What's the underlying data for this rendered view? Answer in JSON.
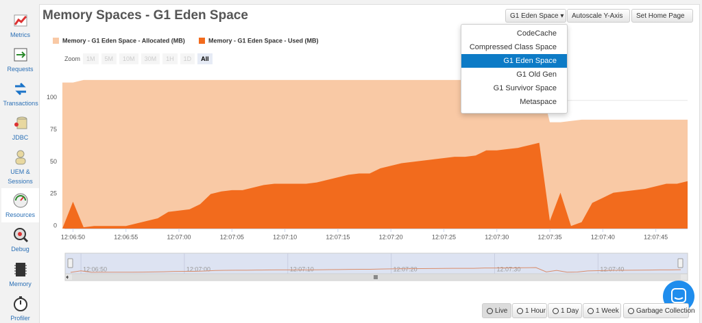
{
  "sidebar": [
    "Metrics",
    "Requests",
    "Transactions",
    "JDBC",
    "UEM & Sessions",
    "Resources",
    "Debug",
    "Memory",
    "Profiler"
  ],
  "sidebar_selected": 5,
  "header": {
    "title": "Memory Spaces - G1 Eden Space",
    "buttons": [
      "G1 Eden Space",
      "Autoscale Y-Axis",
      "Set Home Page"
    ]
  },
  "dropdown": {
    "items": [
      "CodeCache",
      "Compressed Class Space",
      "G1 Eden Space",
      "G1 Old Gen",
      "G1 Survivor Space",
      "Metaspace"
    ],
    "selected": 2
  },
  "zoom": {
    "label": "Zoom",
    "buttons": [
      "1M",
      "5M",
      "10M",
      "30M",
      "1H",
      "1D",
      "All"
    ],
    "active": 6
  },
  "footer_buttons": [
    "Live",
    "1 Hour",
    "1 Day",
    "1 Week",
    "Garbage Collection"
  ],
  "footer_active": 0,
  "chart_data": {
    "type": "area",
    "x": [
      "12:06:49",
      "12:06:50",
      "12:06:51",
      "12:06:52",
      "12:06:53",
      "12:06:54",
      "12:06:55",
      "12:06:56",
      "12:06:57",
      "12:06:58",
      "12:06:59",
      "12:07:00",
      "12:07:01",
      "12:07:02",
      "12:07:03",
      "12:07:04",
      "12:07:05",
      "12:07:06",
      "12:07:07",
      "12:07:08",
      "12:07:09",
      "12:07:10",
      "12:07:11",
      "12:07:12",
      "12:07:13",
      "12:07:14",
      "12:07:15",
      "12:07:16",
      "12:07:17",
      "12:07:18",
      "12:07:19",
      "12:07:20",
      "12:07:21",
      "12:07:22",
      "12:07:23",
      "12:07:24",
      "12:07:25",
      "12:07:26",
      "12:07:27",
      "12:07:28",
      "12:07:29",
      "12:07:30",
      "12:07:31",
      "12:07:32",
      "12:07:33",
      "12:07:34",
      "12:07:35",
      "12:07:36",
      "12:07:37",
      "12:07:38",
      "12:07:39",
      "12:07:40",
      "12:07:41",
      "12:07:42",
      "12:07:43",
      "12:07:44",
      "12:07:45",
      "12:07:46",
      "12:07:47",
      "12:07:48"
    ],
    "series": [
      {
        "name": "Memory - G1 Eden Space - Allocated (MB)",
        "color": "#f9c9a5",
        "values": [
          114,
          114,
          116,
          116,
          116,
          116,
          116,
          116,
          116,
          116,
          116,
          116,
          116,
          116,
          116,
          116,
          116,
          116,
          116,
          116,
          116,
          116,
          116,
          116,
          116,
          116,
          116,
          116,
          116,
          116,
          116,
          116,
          116,
          116,
          116,
          116,
          116,
          116,
          116,
          116,
          116,
          116,
          116,
          116,
          116,
          116,
          83,
          83,
          84,
          85,
          85,
          85,
          85,
          85,
          85,
          85,
          85,
          85,
          85,
          85
        ]
      },
      {
        "name": "Memory - G1 Eden Space - Used (MB)",
        "color": "#f26b1d",
        "values": [
          0,
          21,
          1,
          2,
          2,
          2,
          2,
          4,
          6,
          8,
          13,
          14,
          15,
          19,
          27,
          29,
          30,
          30,
          32,
          34,
          35,
          35,
          35,
          35,
          36,
          38,
          40,
          42,
          43,
          43,
          47,
          49,
          51,
          52,
          53,
          54,
          55,
          56,
          56,
          57,
          61,
          61,
          62,
          63,
          65,
          67,
          6,
          28,
          2,
          5,
          20,
          24,
          28,
          29,
          30,
          31,
          33,
          35,
          35,
          37
        ]
      }
    ],
    "xlim": [
      "12:06:49",
      "12:07:48"
    ],
    "xticks": [
      "12:06:50",
      "12:06:55",
      "12:07:00",
      "12:07:05",
      "12:07:10",
      "12:07:15",
      "12:07:20",
      "12:07:25",
      "12:07:30",
      "12:07:35",
      "12:07:40",
      "12:07:45"
    ],
    "ylim": [
      0,
      125
    ],
    "yticks": [
      0,
      25,
      50,
      75,
      100
    ],
    "grid": true,
    "navigator_ticks": [
      "12:06:50",
      "12:07:00",
      "12:07:10",
      "12:07:20",
      "12:07:30",
      "12:07:40"
    ]
  }
}
